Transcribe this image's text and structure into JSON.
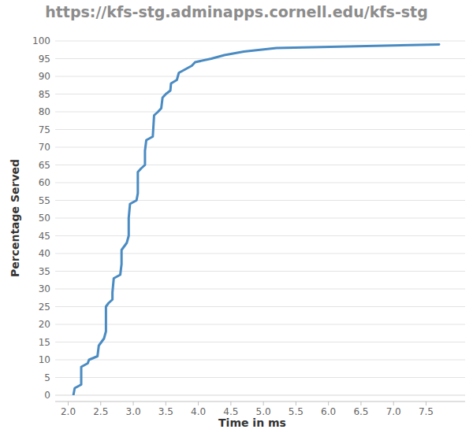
{
  "chart_data": {
    "type": "line",
    "title": "https://kfs-stg.adminapps.cornell.edu/kfs-stg",
    "x_label": "Time in ms",
    "y_label": "Percentage Served",
    "x": [
      2.08,
      2.1,
      2.2,
      2.2,
      2.3,
      2.32,
      2.45,
      2.47,
      2.55,
      2.58,
      2.58,
      2.62,
      2.68,
      2.68,
      2.7,
      2.8,
      2.82,
      2.82,
      2.9,
      2.93,
      2.93,
      2.95,
      3.05,
      3.07,
      3.07,
      3.12,
      3.18,
      3.18,
      3.2,
      3.3,
      3.32,
      3.38,
      3.43,
      3.45,
      3.5,
      3.57,
      3.58,
      3.67,
      3.7,
      3.9,
      3.95,
      4.2,
      4.4,
      4.7,
      5.2,
      7.7
    ],
    "values": [
      0,
      2,
      3,
      8,
      9,
      10,
      11,
      14,
      16,
      18,
      25,
      26,
      27,
      29,
      33,
      34,
      37,
      41,
      43,
      45,
      50,
      54,
      55,
      57,
      63,
      64,
      65,
      69,
      72,
      73,
      79,
      80,
      81,
      84,
      85,
      86,
      88,
      89,
      91,
      93,
      94,
      95,
      96,
      97,
      98,
      99
    ],
    "color": "#4a8bc2",
    "xlim": [
      1.8,
      8.1
    ],
    "ylim": [
      0,
      100
    ],
    "xticks": [
      {
        "value": 2,
        "label": "2.0"
      },
      2.5,
      {
        "value": 3,
        "label": "3.0"
      },
      3.5,
      {
        "value": 4,
        "label": "4.0"
      },
      4.5,
      {
        "value": 5,
        "label": "5.0"
      },
      5.5,
      {
        "value": 6,
        "label": "6.0"
      },
      6.5,
      {
        "value": 7,
        "label": "7.0"
      },
      7.5
    ],
    "yticks": [
      0,
      5,
      10,
      15,
      20,
      25,
      30,
      35,
      40,
      45,
      50,
      55,
      60,
      65,
      70,
      75,
      80,
      85,
      90,
      95,
      100
    ],
    "grid": true
  }
}
